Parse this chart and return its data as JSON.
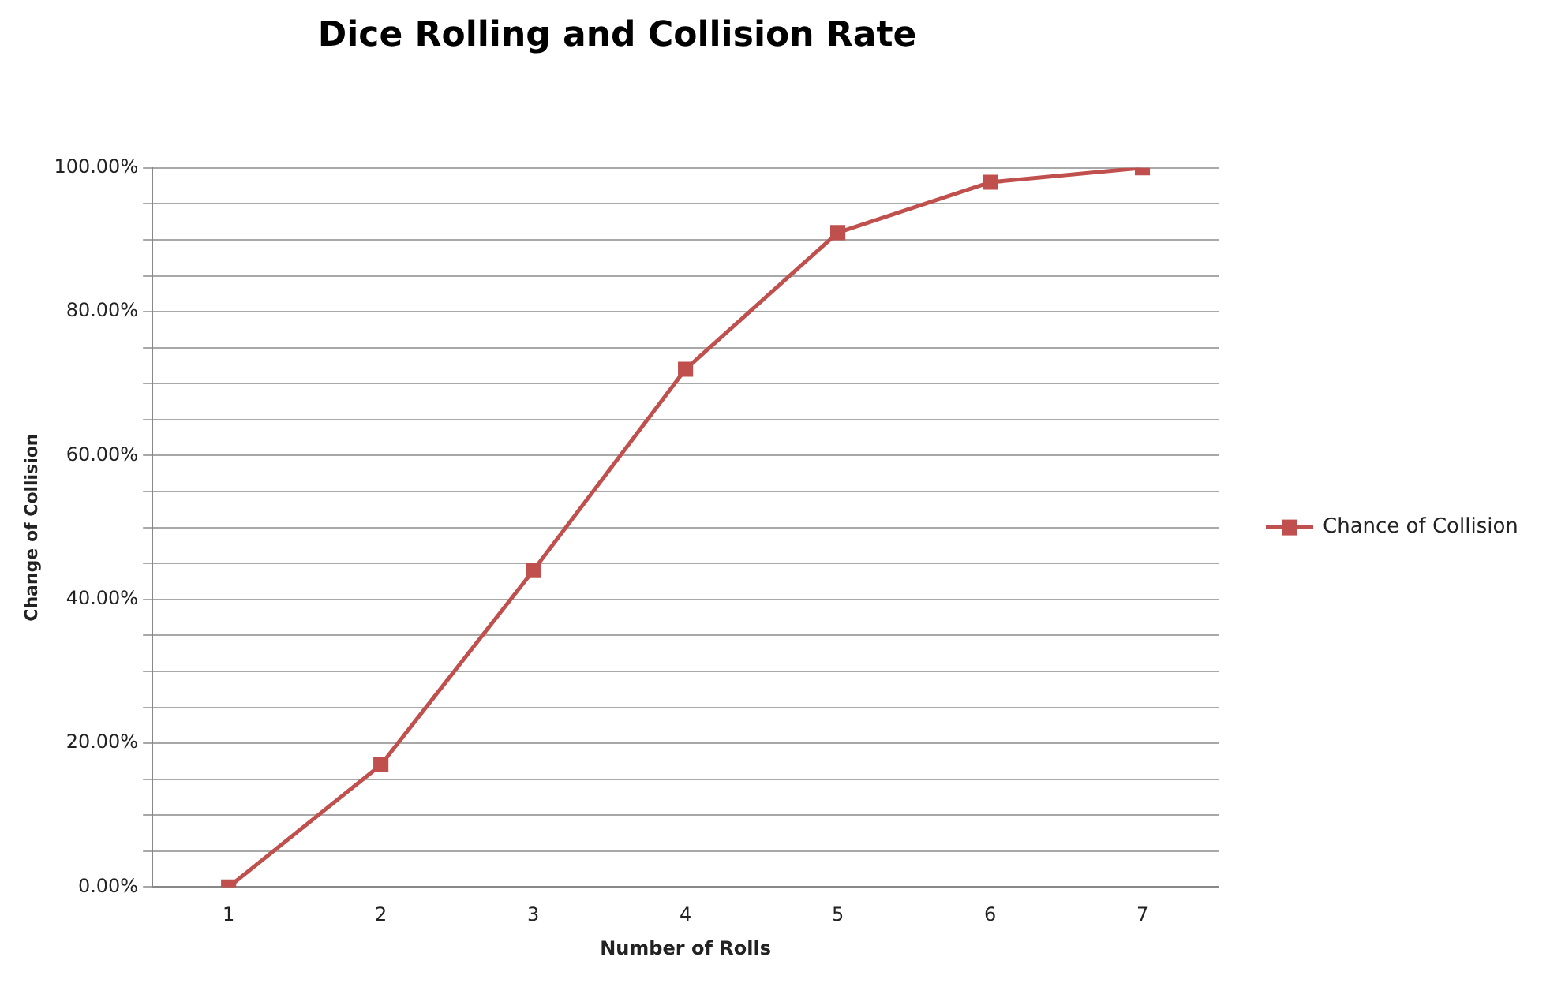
{
  "chart_data": {
    "type": "line",
    "title": "Dice Rolling and Collision Rate",
    "xlabel": "Number of Rolls",
    "ylabel": "Change of Collision",
    "categories": [
      "1",
      "2",
      "3",
      "4",
      "5",
      "6",
      "7"
    ],
    "series": [
      {
        "name": "Chance of Collision",
        "color": "#c0504d",
        "values": [
          0,
          17,
          44,
          72,
          91,
          98,
          100
        ]
      }
    ],
    "ylim": [
      0,
      100
    ],
    "yticks": [
      {
        "value": 0,
        "label": "0.00%"
      },
      {
        "value": 5,
        "label": null
      },
      {
        "value": 10,
        "label": null
      },
      {
        "value": 15,
        "label": null
      },
      {
        "value": 20,
        "label": "20.00%"
      },
      {
        "value": 25,
        "label": null
      },
      {
        "value": 30,
        "label": null
      },
      {
        "value": 35,
        "label": null
      },
      {
        "value": 40,
        "label": "40.00%"
      },
      {
        "value": 45,
        "label": null
      },
      {
        "value": 50,
        "label": null
      },
      {
        "value": 55,
        "label": null
      },
      {
        "value": 60,
        "label": "60.00%"
      },
      {
        "value": 65,
        "label": null
      },
      {
        "value": 70,
        "label": null
      },
      {
        "value": 75,
        "label": null
      },
      {
        "value": 80,
        "label": "80.00%"
      },
      {
        "value": 85,
        "label": null
      },
      {
        "value": 90,
        "label": null
      },
      {
        "value": 95,
        "label": null
      },
      {
        "value": 100,
        "label": "100.00%"
      }
    ],
    "grid": "y",
    "legend": "right",
    "marker": "square",
    "line_style": "solid"
  }
}
